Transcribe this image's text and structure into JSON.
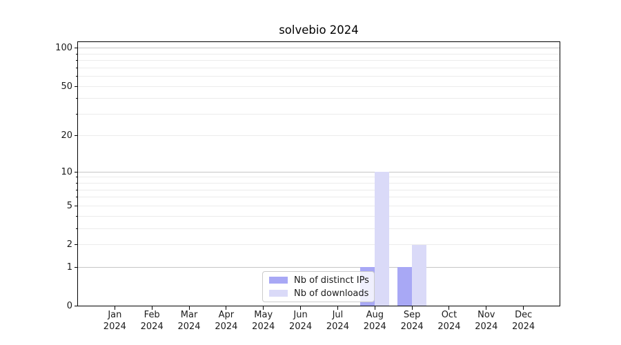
{
  "title": "solvebio 2024",
  "colors": {
    "distinct_ips": "#a8a8f5",
    "downloads": "#dadaf8",
    "grid_major": "#c6c6c6",
    "grid_minor": "#ebebeb",
    "axis": "#000000",
    "legend_border": "#cbcbcb"
  },
  "legend": {
    "items": [
      {
        "label": "Nb of distinct IPs",
        "color_key": "distinct_ips"
      },
      {
        "label": "Nb of downloads",
        "color_key": "downloads"
      }
    ]
  },
  "y_axis": {
    "labeled_ticks": [
      0,
      1,
      2,
      5,
      10,
      20,
      50,
      100
    ],
    "minor_ticks": [
      3,
      4,
      6,
      7,
      8,
      9,
      30,
      40,
      60,
      70,
      80,
      90
    ],
    "major_grid": [
      1,
      10,
      100
    ],
    "minor_grid": [
      2,
      3,
      4,
      5,
      6,
      7,
      8,
      9,
      20,
      30,
      40,
      50,
      60,
      70,
      80,
      90
    ],
    "scale": "log1p"
  },
  "x_axis": {
    "categories": [
      {
        "month": "Jan",
        "year": "2024"
      },
      {
        "month": "Feb",
        "year": "2024"
      },
      {
        "month": "Mar",
        "year": "2024"
      },
      {
        "month": "Apr",
        "year": "2024"
      },
      {
        "month": "May",
        "year": "2024"
      },
      {
        "month": "Jun",
        "year": "2024"
      },
      {
        "month": "Jul",
        "year": "2024"
      },
      {
        "month": "Aug",
        "year": "2024"
      },
      {
        "month": "Sep",
        "year": "2024"
      },
      {
        "month": "Oct",
        "year": "2024"
      },
      {
        "month": "Nov",
        "year": "2024"
      },
      {
        "month": "Dec",
        "year": "2024"
      }
    ]
  },
  "chart_data": {
    "type": "bar",
    "title": "solvebio 2024",
    "categories": [
      "Jan 2024",
      "Feb 2024",
      "Mar 2024",
      "Apr 2024",
      "May 2024",
      "Jun 2024",
      "Jul 2024",
      "Aug 2024",
      "Sep 2024",
      "Oct 2024",
      "Nov 2024",
      "Dec 2024"
    ],
    "series": [
      {
        "name": "Nb of distinct IPs",
        "color_key": "distinct_ips",
        "values": [
          0,
          0,
          0,
          0,
          0,
          0,
          0,
          1,
          1,
          0,
          0,
          0
        ]
      },
      {
        "name": "Nb of downloads",
        "color_key": "downloads",
        "values": [
          0,
          0,
          0,
          0,
          0,
          0,
          0,
          10,
          2,
          0,
          0,
          0
        ]
      }
    ],
    "yscale": "log1p",
    "yticks": [
      0,
      1,
      2,
      5,
      10,
      20,
      50,
      100
    ],
    "ylim": [
      0,
      113
    ],
    "grid": "horizontal",
    "legend_position": "inside-bottom-center"
  }
}
